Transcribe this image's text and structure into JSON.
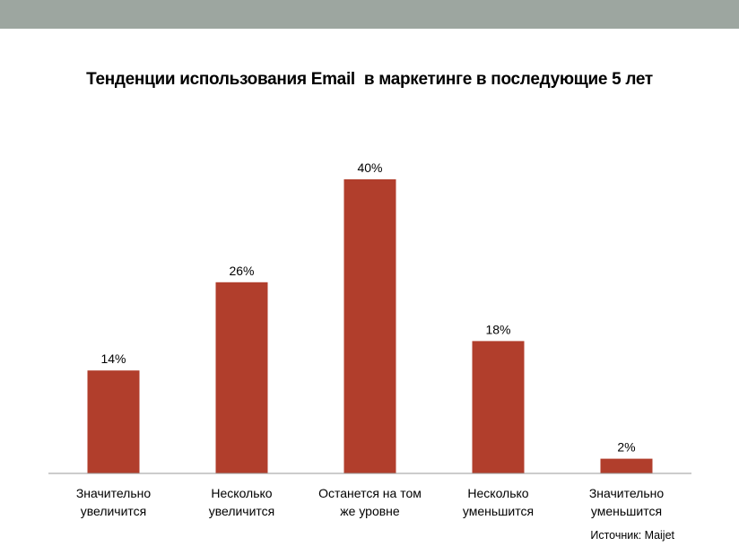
{
  "colors": {
    "top_band": "#9DA6A0",
    "bar": "#B13E2C",
    "axis": "#999999"
  },
  "source_note": "Источник: Maijet",
  "chart_data": {
    "type": "bar",
    "title": "Тенденции использования Email  в маркетинге в последующие 5 лет",
    "categories": [
      [
        "Значительно",
        "увеличится"
      ],
      [
        "Несколько",
        "увеличится"
      ],
      [
        "Останется на том",
        "же уровне"
      ],
      [
        "Несколько",
        "уменьшится"
      ],
      [
        "Значительно",
        "уменьшится"
      ]
    ],
    "values": [
      14,
      26,
      40,
      18,
      2
    ],
    "data_labels": [
      "14%",
      "26%",
      "40%",
      "18%",
      "2%"
    ],
    "unit": "%",
    "ylim": [
      0,
      40
    ],
    "grid": false,
    "legend": "none"
  }
}
